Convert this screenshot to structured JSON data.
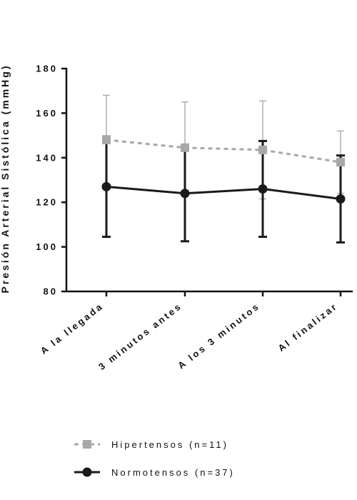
{
  "chart_data": {
    "type": "line",
    "ylabel": "Presión Arterial Sistólica (mmHg)",
    "ylim": [
      80,
      180
    ],
    "yticks": [
      80,
      100,
      120,
      140,
      160,
      180
    ],
    "categories": [
      "A la llegada",
      "3 minutos antes",
      "A los 3 minutos",
      "Al finalizar"
    ],
    "series": [
      {
        "name": "Hipertensos (n=11)",
        "style": "dashed",
        "marker": "square",
        "color": "#a8a8a8",
        "values": [
          148,
          144.5,
          143.5,
          138
        ],
        "error": [
          20,
          20.5,
          22,
          14
        ]
      },
      {
        "name": "Normotensos (n=37)",
        "style": "solid",
        "marker": "circle",
        "color": "#1a1a1a",
        "values": [
          127,
          124,
          126,
          121.5
        ],
        "error": [
          22.5,
          21.5,
          21.5,
          19.5
        ]
      }
    ],
    "grid": false,
    "legend": "bottom"
  }
}
